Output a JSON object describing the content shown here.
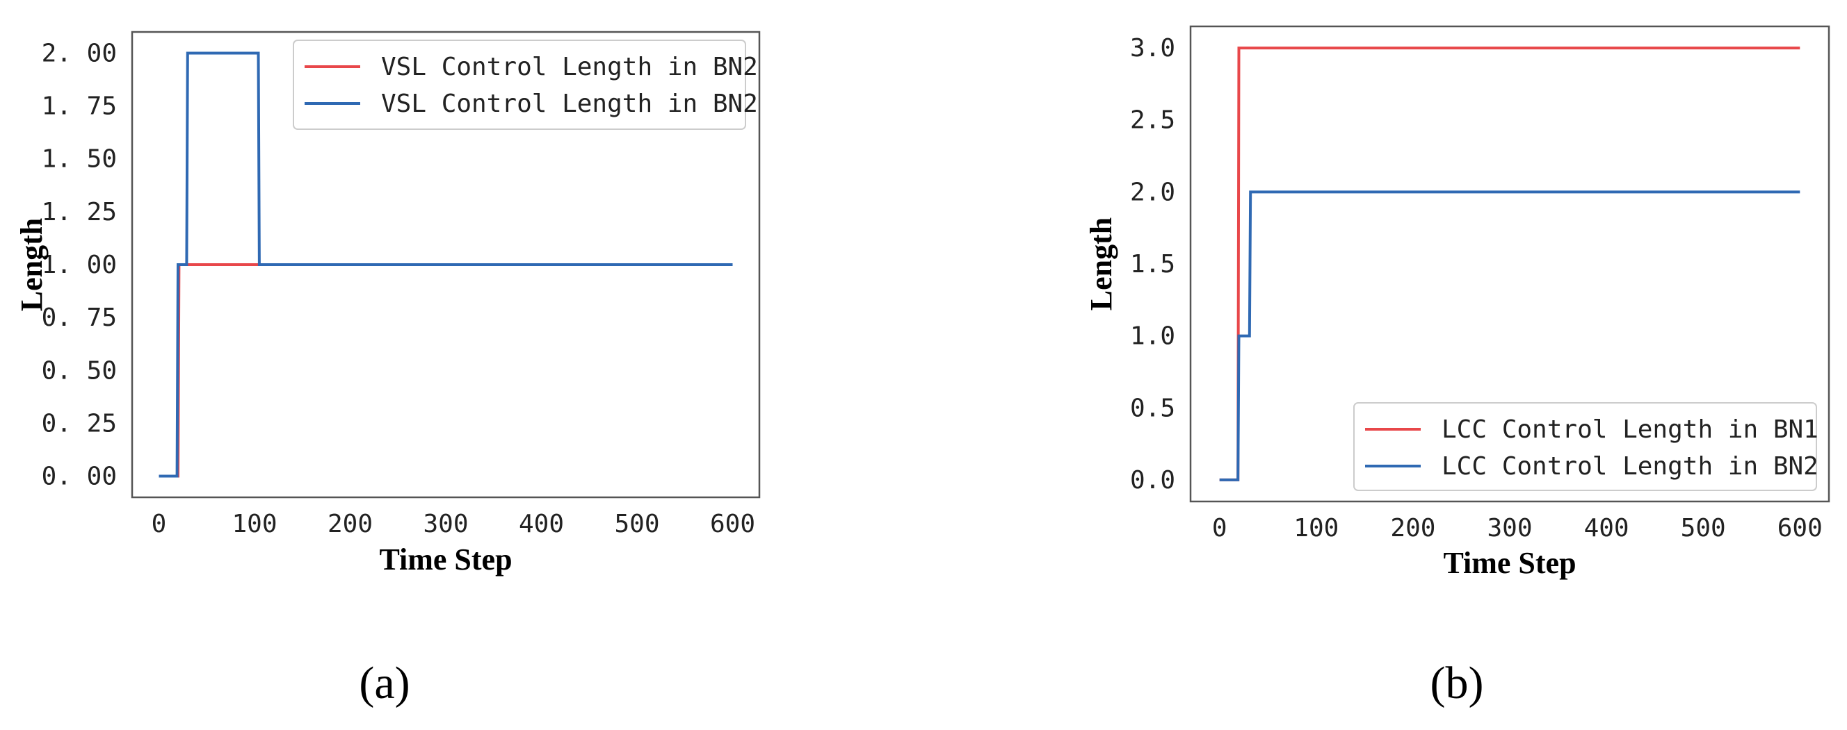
{
  "chart_data": [
    {
      "type": "line",
      "panel_label": "(a)",
      "xlabel": "Time Step",
      "ylabel": "Length",
      "xlim": [
        -28,
        628
      ],
      "ylim": [
        -0.1,
        2.1
      ],
      "xticks": [
        0,
        100,
        200,
        300,
        400,
        500,
        600
      ],
      "yticks": [
        0.0,
        0.25,
        0.5,
        0.75,
        1.0,
        1.25,
        1.5,
        1.75,
        2.0
      ],
      "ytick_labels": [
        "0. 00",
        "0. 25",
        "0. 50",
        "0. 75",
        "1. 00",
        "1. 25",
        "1. 50",
        "1. 75",
        "2. 00"
      ],
      "grid": false,
      "legend_position": "top-right",
      "series": [
        {
          "name": "VSL Control Length in BN2",
          "color": "#e8474a",
          "x": [
            0,
            19,
            20,
            21,
            104,
            105,
            600
          ],
          "y": [
            0,
            0,
            0,
            1,
            1,
            1,
            1
          ]
        },
        {
          "name": "VSL Control Length in BN2",
          "color": "#2f69b3",
          "x": [
            0,
            19,
            20,
            29,
            30,
            104,
            105,
            600
          ],
          "y": [
            0,
            0,
            1,
            1,
            2,
            2,
            1,
            1
          ]
        }
      ]
    },
    {
      "type": "line",
      "panel_label": "(b)",
      "xlabel": "Time Step",
      "ylabel": "Length",
      "xlim": [
        -30,
        630
      ],
      "ylim": [
        -0.15,
        3.15
      ],
      "xticks": [
        0,
        100,
        200,
        300,
        400,
        500,
        600
      ],
      "yticks": [
        0.0,
        0.5,
        1.0,
        1.5,
        2.0,
        2.5,
        3.0
      ],
      "ytick_labels": [
        "0.0",
        "0.5",
        "1.0",
        "1.5",
        "2.0",
        "2.5",
        "3.0"
      ],
      "grid": false,
      "legend_position": "bottom-right",
      "series": [
        {
          "name": "LCC Control Length in BN1",
          "color": "#e8474a",
          "x": [
            0,
            19,
            20,
            600
          ],
          "y": [
            0,
            0,
            3,
            3
          ]
        },
        {
          "name": "LCC Control Length in BN2",
          "color": "#2f69b3",
          "x": [
            0,
            19,
            20,
            31,
            32,
            600
          ],
          "y": [
            0,
            0,
            1,
            1,
            2,
            2
          ]
        }
      ]
    }
  ]
}
